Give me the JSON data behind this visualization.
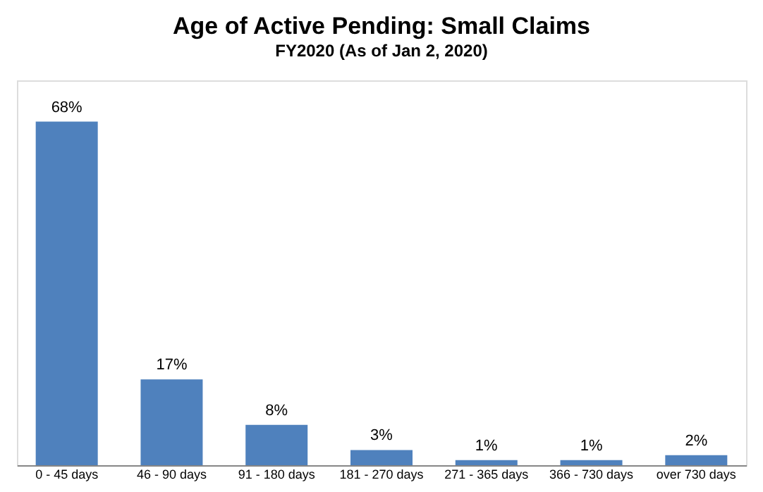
{
  "chart_data": {
    "type": "bar",
    "title": "Age of Active Pending: Small Claims",
    "subtitle": "FY2020  (As of Jan 2, 2020)",
    "categories": [
      "0 - 45 days",
      "46 - 90 days",
      "91 - 180 days",
      "181 - 270 days",
      "271 - 365 days",
      "366 - 730 days",
      "over 730 days"
    ],
    "values": [
      68,
      17,
      8,
      3,
      1,
      1,
      2
    ],
    "value_labels": [
      "68%",
      "17%",
      "8%",
      "3%",
      "1%",
      "1%",
      "2%"
    ],
    "color": "#4f81bd",
    "grid": false
  }
}
